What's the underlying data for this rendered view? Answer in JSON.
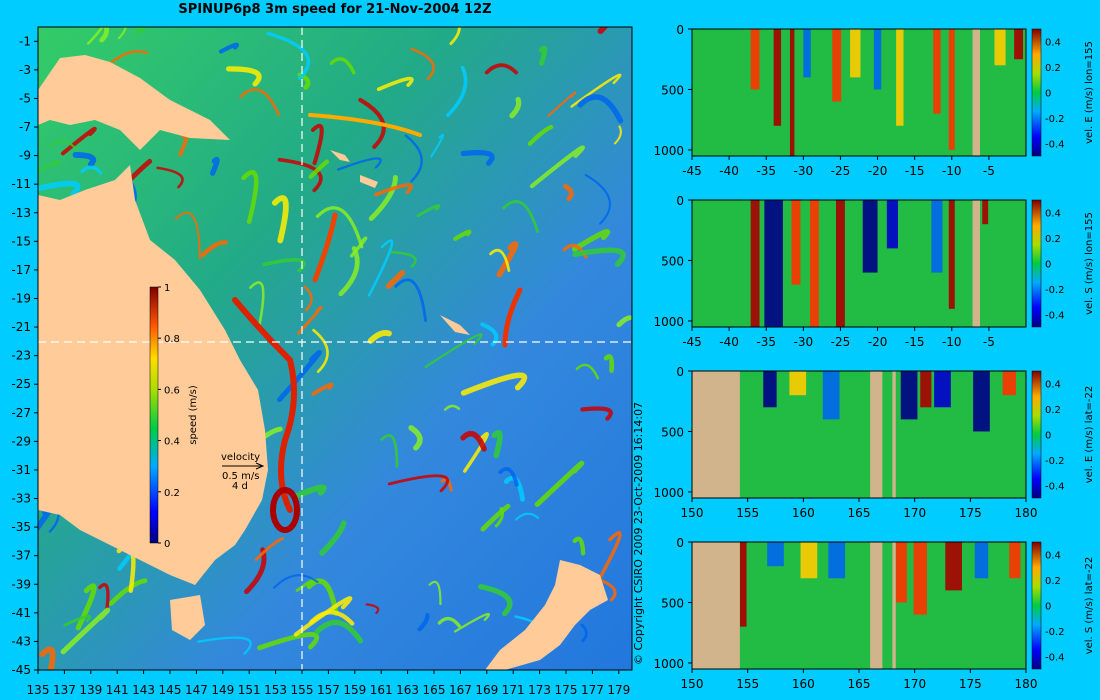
{
  "title": "SPINUP6p8 3m speed for 21-Nov-2004 12Z",
  "copyright": "© Copyright CSIRO 2009   23-Oct-2009 16:14:07",
  "colors": {
    "background": "#00ccff",
    "land": "#ffcc99",
    "section_land": "#d2b48c",
    "cross_hair": "#ffffff"
  },
  "map": {
    "lon_range": [
      135,
      180
    ],
    "lat_range": [
      -45,
      0
    ],
    "lon_ticks": [
      "135",
      "137",
      "139",
      "141",
      "143",
      "145",
      "147",
      "149",
      "151",
      "153",
      "155",
      "157",
      "159",
      "161",
      "163",
      "165",
      "167",
      "169",
      "171",
      "173",
      "175",
      "177",
      "179"
    ],
    "lat_ticks": [
      "-1",
      "-3",
      "-5",
      "-7",
      "-9",
      "-11",
      "-13",
      "-15",
      "-17",
      "-19",
      "-21",
      "-23",
      "-25",
      "-27",
      "-29",
      "-31",
      "-33",
      "-35",
      "-37",
      "-39",
      "-41",
      "-43",
      "-45"
    ],
    "cross_lon": 155,
    "cross_lat": -22,
    "colorbar": {
      "label": "speed (m/s)",
      "ticks": [
        "1",
        "0.8",
        "0.6",
        "0.4",
        "0.2",
        "0"
      ],
      "range": [
        0,
        1
      ]
    },
    "velocity_key": {
      "label": "velocity",
      "scale": "0.5 m/s",
      "time": "4 d"
    }
  },
  "panels": [
    {
      "label": "vel. E (m/s) lon=155",
      "x_ticks": [
        "-45",
        "-40",
        "-35",
        "-30",
        "-25",
        "-20",
        "-15",
        "-10",
        "-5"
      ],
      "x_range": [
        -45,
        0
      ],
      "y_ticks": [
        "0",
        "500",
        "1000"
      ],
      "y_range": [
        0,
        1050
      ],
      "cb_ticks": [
        "0.4",
        "0.2",
        "0",
        "-0.2",
        "-0.4"
      ],
      "bands": [
        {
          "x": -36.5,
          "w": 1.2,
          "v": 0.3,
          "d": 500
        },
        {
          "x": -33.5,
          "w": 1.0,
          "v": 0.4,
          "d": 800
        },
        {
          "x": -31.5,
          "w": 0.6,
          "v": 0.45,
          "d": 1050
        },
        {
          "x": -29.5,
          "w": 1.0,
          "v": -0.15,
          "d": 400
        },
        {
          "x": -25.5,
          "w": 1.2,
          "v": 0.25,
          "d": 600
        },
        {
          "x": -23.0,
          "w": 1.4,
          "v": 0.2,
          "d": 400
        },
        {
          "x": -20.0,
          "w": 1.0,
          "v": -0.2,
          "d": 500
        },
        {
          "x": -17.0,
          "w": 1.0,
          "v": 0.2,
          "d": 800
        },
        {
          "x": -12.0,
          "w": 1.0,
          "v": 0.25,
          "d": 700
        },
        {
          "x": -10.0,
          "w": 0.8,
          "v": 0.3,
          "d": 1000
        },
        {
          "x": -3.5,
          "w": 1.5,
          "v": 0.2,
          "d": 300
        },
        {
          "x": -1.0,
          "w": 1.2,
          "v": 0.45,
          "d": 250
        }
      ],
      "land": [
        {
          "from": -7.2,
          "to": -6.2
        }
      ]
    },
    {
      "label": "vel. S (m/s) lon=155",
      "x_ticks": [
        "-45",
        "-40",
        "-35",
        "-30",
        "-25",
        "-20",
        "-15",
        "-10",
        "-5"
      ],
      "x_range": [
        -45,
        0
      ],
      "y_ticks": [
        "0",
        "500",
        "1000"
      ],
      "y_range": [
        0,
        1050
      ],
      "cb_ticks": [
        "0.4",
        "0.2",
        "0",
        "-0.2",
        "-0.4"
      ],
      "bands": [
        {
          "x": -36.5,
          "w": 1.2,
          "v": 0.4,
          "d": 1050
        },
        {
          "x": -34.0,
          "w": 2.5,
          "v": -0.45,
          "d": 1050
        },
        {
          "x": -31.0,
          "w": 1.2,
          "v": 0.25,
          "d": 700
        },
        {
          "x": -28.5,
          "w": 1.2,
          "v": 0.3,
          "d": 1050
        },
        {
          "x": -25.0,
          "w": 1.2,
          "v": 0.4,
          "d": 1050
        },
        {
          "x": -21.0,
          "w": 2.0,
          "v": -0.35,
          "d": 600
        },
        {
          "x": -18.0,
          "w": 1.5,
          "v": -0.25,
          "d": 400
        },
        {
          "x": -12.0,
          "w": 1.5,
          "v": -0.2,
          "d": 600
        },
        {
          "x": -10.0,
          "w": 0.8,
          "v": 0.4,
          "d": 900
        },
        {
          "x": -5.5,
          "w": 0.8,
          "v": 0.35,
          "d": 200
        }
      ],
      "land": [
        {
          "from": -7.2,
          "to": -6.2
        }
      ]
    },
    {
      "label": "vel. E (m/s) lat=-22",
      "x_ticks": [
        "150",
        "155",
        "160",
        "165",
        "170",
        "175",
        "180"
      ],
      "x_range": [
        150,
        180
      ],
      "y_ticks": [
        "0",
        "500",
        "1000"
      ],
      "y_range": [
        0,
        1050
      ],
      "cb_ticks": [
        "0.4",
        "0.2",
        "0",
        "-0.2",
        "-0.4"
      ],
      "bands": [
        {
          "x": 157.0,
          "w": 1.2,
          "v": -0.4,
          "d": 300
        },
        {
          "x": 159.5,
          "w": 1.5,
          "v": 0.2,
          "d": 200
        },
        {
          "x": 162.5,
          "w": 1.5,
          "v": -0.2,
          "d": 400
        },
        {
          "x": 169.5,
          "w": 1.5,
          "v": -0.35,
          "d": 400
        },
        {
          "x": 171.0,
          "w": 1.0,
          "v": 0.35,
          "d": 300
        },
        {
          "x": 172.5,
          "w": 1.5,
          "v": -0.3,
          "d": 300
        },
        {
          "x": 176.0,
          "w": 1.5,
          "v": -0.45,
          "d": 500
        },
        {
          "x": 178.5,
          "w": 1.2,
          "v": 0.3,
          "d": 200
        }
      ],
      "land": [
        {
          "from": 150,
          "to": 154.3
        },
        {
          "from": 166.0,
          "to": 167.1
        },
        {
          "from": 168.0,
          "to": 168.3
        }
      ]
    },
    {
      "label": "vel. S (m/s) lat=-22",
      "x_ticks": [
        "150",
        "155",
        "160",
        "165",
        "170",
        "175",
        "180"
      ],
      "x_range": [
        150,
        180
      ],
      "y_ticks": [
        "0",
        "500",
        "1000"
      ],
      "y_range": [
        0,
        1050
      ],
      "cb_ticks": [
        "0.4",
        "0.2",
        "0",
        "-0.2",
        "-0.4"
      ],
      "bands": [
        {
          "x": 154.6,
          "w": 0.6,
          "v": 0.45,
          "d": 700
        },
        {
          "x": 157.5,
          "w": 1.5,
          "v": -0.2,
          "d": 200
        },
        {
          "x": 160.5,
          "w": 1.5,
          "v": 0.2,
          "d": 300
        },
        {
          "x": 163.0,
          "w": 1.5,
          "v": -0.15,
          "d": 300
        },
        {
          "x": 168.8,
          "w": 1.0,
          "v": 0.3,
          "d": 500
        },
        {
          "x": 170.5,
          "w": 1.2,
          "v": 0.3,
          "d": 600
        },
        {
          "x": 173.5,
          "w": 1.5,
          "v": 0.35,
          "d": 400
        },
        {
          "x": 176.0,
          "w": 1.2,
          "v": -0.2,
          "d": 300
        },
        {
          "x": 179.0,
          "w": 1.0,
          "v": 0.3,
          "d": 300
        }
      ],
      "land": [
        {
          "from": 150,
          "to": 154.3
        },
        {
          "from": 166.0,
          "to": 167.1
        },
        {
          "from": 168.0,
          "to": 168.3
        }
      ]
    }
  ]
}
